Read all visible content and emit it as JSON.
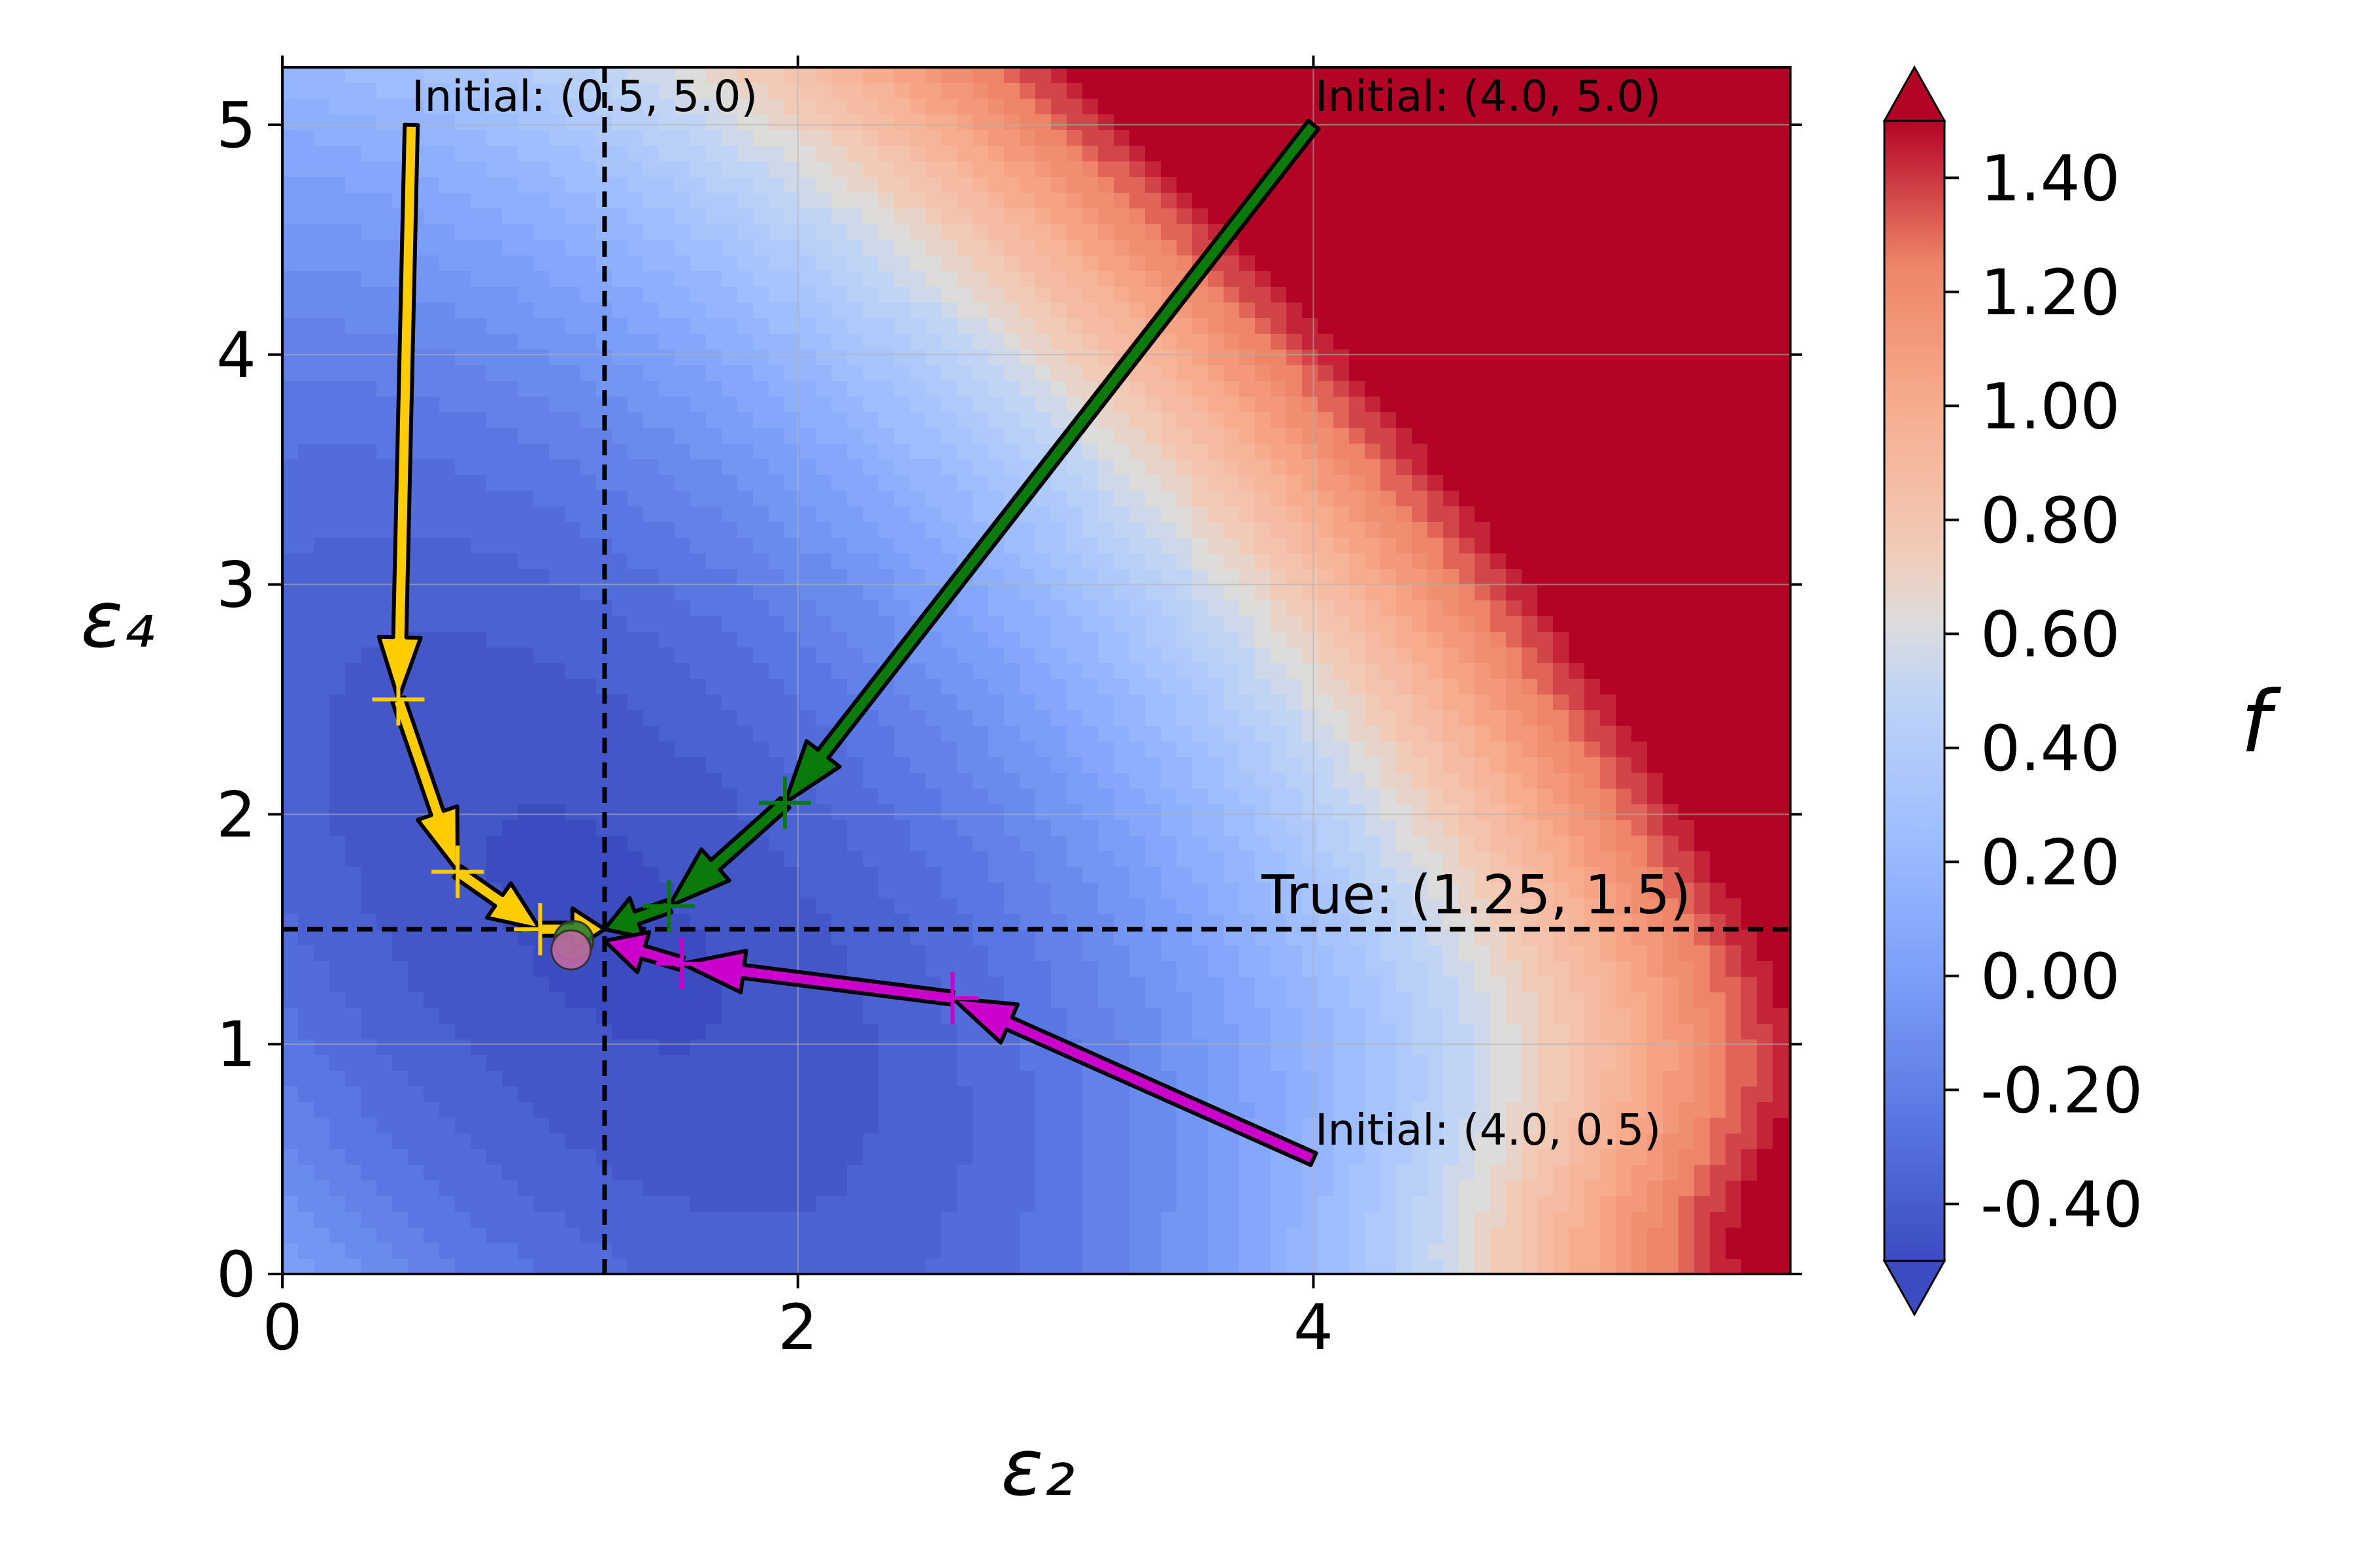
{
  "chart_data": {
    "type": "contour",
    "xlabel": "ε₂",
    "ylabel": "ε₄",
    "xlim": [
      0,
      5.85
    ],
    "ylim": [
      0,
      5.25
    ],
    "xticks": [
      {
        "value": 0,
        "label": "0"
      },
      {
        "value": 2,
        "label": "2"
      },
      {
        "value": 4,
        "label": "4"
      }
    ],
    "yticks": [
      {
        "value": 0,
        "label": "0"
      },
      {
        "value": 1,
        "label": "1"
      },
      {
        "value": 2,
        "label": "2"
      },
      {
        "value": 3,
        "label": "3"
      },
      {
        "value": 4,
        "label": "4"
      },
      {
        "value": 5,
        "label": "5"
      }
    ],
    "grid": true,
    "colormap": "coolwarm",
    "colorbar": {
      "label": "f",
      "range": [
        -0.5,
        1.5
      ],
      "extend": "both",
      "ticks": [
        {
          "value": 1.4,
          "label": "1.40"
        },
        {
          "value": 1.2,
          "label": "1.20"
        },
        {
          "value": 1.0,
          "label": "1.00"
        },
        {
          "value": 0.8,
          "label": "0.80"
        },
        {
          "value": 0.6,
          "label": "0.60"
        },
        {
          "value": 0.4,
          "label": "0.40"
        },
        {
          "value": 0.2,
          "label": "0.20"
        },
        {
          "value": 0.0,
          "label": "0.00"
        },
        {
          "value": -0.2,
          "label": "-0.20"
        },
        {
          "value": -0.4,
          "label": "-0.40"
        }
      ]
    },
    "true_point": {
      "x": 1.25,
      "y": 1.5,
      "label": "True: (1.25, 1.5)"
    },
    "trajectories": [
      {
        "label": "Initial: (0.5, 5.0)",
        "color": "#ffcc00",
        "points": [
          [
            0.5,
            5.0
          ],
          [
            0.45,
            2.5
          ],
          [
            0.68,
            1.75
          ],
          [
            1.0,
            1.5
          ],
          [
            1.25,
            1.5
          ]
        ]
      },
      {
        "label": "Initial: (4.0, 5.0)",
        "color": "#0a7a0a",
        "points": [
          [
            4.0,
            5.0
          ],
          [
            1.95,
            2.05
          ],
          [
            1.5,
            1.6
          ],
          [
            1.25,
            1.5
          ]
        ]
      },
      {
        "label": "Initial: (4.0, 0.5)",
        "color": "#cc00cc",
        "points": [
          [
            4.0,
            0.5
          ],
          [
            2.6,
            1.2
          ],
          [
            1.55,
            1.35
          ],
          [
            1.25,
            1.45
          ]
        ]
      }
    ],
    "converged_markers": [
      {
        "x": 1.13,
        "y": 1.45,
        "color": "#1f7a2e"
      },
      {
        "x": 1.12,
        "y": 1.41,
        "color": "#c86aa8"
      }
    ]
  }
}
